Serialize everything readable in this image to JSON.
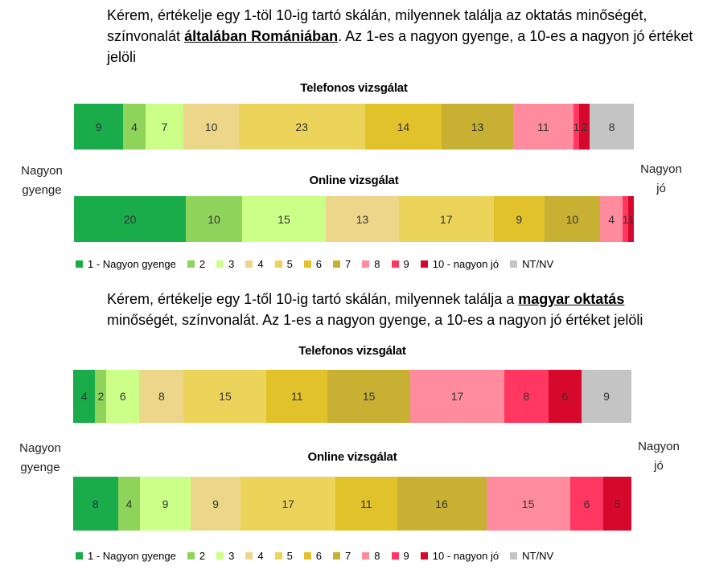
{
  "colors": {
    "c1": "#1aab4b",
    "c2": "#8ed45a",
    "c3": "#ccff88",
    "c4": "#ecd68a",
    "c5": "#ecd45a",
    "c6": "#e1c22a",
    "c7": "#c8b132",
    "c8": "#ff8c9e",
    "c9": "#ff3761",
    "c10": "#d6092c",
    "na": "#c4c4c4"
  },
  "q1": {
    "pre": "Kérem, értékelje egy 1-töl 10-ig tartó skálán, milyennek találja az oktatás minőségét, színvonalát ",
    "strong": "általában Romániában",
    "post": ". Az 1-es a nagyon gyenge, a 10-es a nagyon jó értéket jelöli"
  },
  "q2": {
    "pre": "Kérem, értékelje egy 1-től 10-ig tartó skálán, milyennek találja a ",
    "strong": "magyar oktatás",
    "post": " minőségét, színvonalát. Az 1-es a nagyon gyenge, a 10-es a nagyon jó értéket jelöli"
  },
  "side_left": [
    "Nagyon",
    "gyenge"
  ],
  "side_right": [
    "Nagyon",
    "jó"
  ],
  "legend": [
    "1 - Nagyon gyenge",
    "2",
    "3",
    "4",
    "5",
    "6",
    "7",
    "8",
    "9",
    "10 - nagyon jó",
    "NT/NV"
  ],
  "chart_data": [
    {
      "type": "bar",
      "orientation": "horizontal-stacked-100",
      "title": "Telefonos vizsgálat",
      "categories": [
        "1 - Nagyon gyenge",
        "2",
        "3",
        "4",
        "5",
        "6",
        "7",
        "8",
        "9",
        "10 - nagyon jó",
        "NT/NV"
      ],
      "values": [
        9,
        4,
        7,
        10,
        23,
        14,
        13,
        11,
        1,
        2,
        8
      ]
    },
    {
      "type": "bar",
      "orientation": "horizontal-stacked-100",
      "title": "Online vizsgálat",
      "categories": [
        "1 - Nagyon gyenge",
        "2",
        "3",
        "4",
        "5",
        "6",
        "7",
        "8",
        "9",
        "10 - nagyon jó",
        "NT/NV"
      ],
      "values": [
        20,
        10,
        15,
        13,
        17,
        9,
        10,
        4,
        1,
        1,
        0
      ]
    },
    {
      "type": "bar",
      "orientation": "horizontal-stacked-100",
      "title": "Telefonos vizsgálat",
      "categories": [
        "1 - Nagyon gyenge",
        "2",
        "3",
        "4",
        "5",
        "6",
        "7",
        "8",
        "9",
        "10 - nagyon jó",
        "NT/NV"
      ],
      "values": [
        4,
        2,
        6,
        8,
        15,
        11,
        15,
        17,
        8,
        6,
        9
      ]
    },
    {
      "type": "bar",
      "orientation": "horizontal-stacked-100",
      "title": "Online vizsgálat",
      "categories": [
        "1 - Nagyon gyenge",
        "2",
        "3",
        "4",
        "5",
        "6",
        "7",
        "8",
        "9",
        "10 - nagyon jó",
        "NT/NV"
      ],
      "values": [
        8,
        4,
        9,
        9,
        17,
        11,
        16,
        15,
        6,
        5,
        0
      ]
    }
  ]
}
